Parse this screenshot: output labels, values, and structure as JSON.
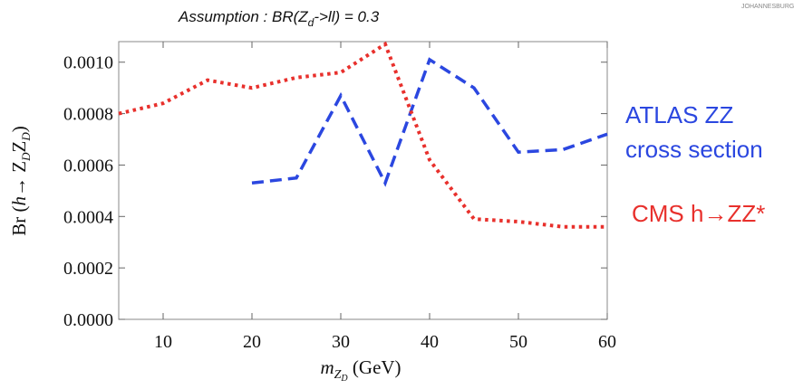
{
  "header": {
    "assumption_prefix": "Assumption : BR(Z",
    "assumption_sub": "d",
    "assumption_suffix": "->ll) = 0.3",
    "watermark": "JOHANNESBURG"
  },
  "legend": {
    "atlas_line1": "ATLAS ZZ",
    "atlas_line2": "cross section",
    "cms": "CMS h→ZZ*",
    "atlas_color": "#2b47e0",
    "cms_color": "#e8302c"
  },
  "chart_data": {
    "type": "line",
    "title": "",
    "xlabel": "m_{Z_D} (GeV)",
    "ylabel": "Br (h→Z_D Z_D)",
    "xlim": [
      5,
      60
    ],
    "ylim": [
      0,
      0.00108
    ],
    "x_ticks": [
      10,
      20,
      30,
      40,
      50,
      60
    ],
    "x_tick_labels": [
      "10",
      "20",
      "30",
      "40",
      "50",
      "60"
    ],
    "y_ticks": [
      0,
      0.0002,
      0.0004,
      0.0006,
      0.0008,
      0.001
    ],
    "y_tick_labels": [
      "0.0000",
      "0.0002",
      "0.0004",
      "0.0006",
      "0.0008",
      "0.0010"
    ],
    "grid": false,
    "series": [
      {
        "name": "ATLAS ZZ cross section",
        "color": "#2b47e0",
        "style": "dashed",
        "x": [
          20,
          25,
          30,
          35,
          40,
          45,
          50,
          55,
          60
        ],
        "y": [
          0.00053,
          0.00055,
          0.00087,
          0.00053,
          0.00101,
          0.0009,
          0.00065,
          0.00066,
          0.00072
        ]
      },
      {
        "name": "CMS h→ZZ*",
        "color": "#e8302c",
        "style": "dotted",
        "x": [
          5,
          10,
          15,
          20,
          25,
          30,
          35,
          40,
          45,
          50,
          55,
          60
        ],
        "y": [
          0.0008,
          0.00084,
          0.00093,
          0.0009,
          0.00094,
          0.00096,
          0.00107,
          0.00062,
          0.00039,
          0.00038,
          0.00036,
          0.00036
        ]
      }
    ]
  }
}
